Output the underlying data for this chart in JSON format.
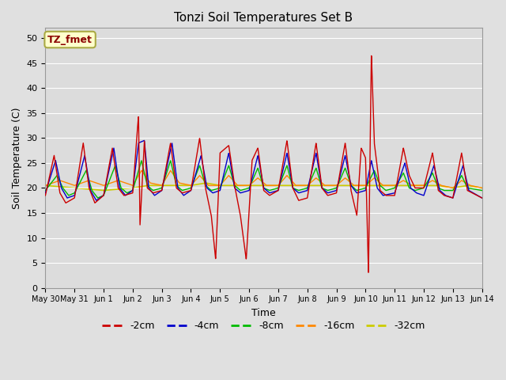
{
  "title": "Tonzi Soil Temperatures Set B",
  "xlabel": "Time",
  "ylabel": "Soil Temperature (C)",
  "ylim": [
    0,
    52
  ],
  "xlim": [
    0,
    15
  ],
  "fig_bg": "#e0e0e0",
  "plot_bg": "#dcdcdc",
  "legend_label": "TZ_fmet",
  "legend_bg": "#ffffcc",
  "legend_border": "#aaaa44",
  "series_colors": {
    "r2": "#cc0000",
    "r4": "#0000cc",
    "r8": "#00bb00",
    "r16": "#ff8800",
    "r32": "#cccc00"
  },
  "xtick_labels": [
    "May 30",
    "May 31",
    "Jun 1",
    "Jun 2",
    "Jun 3",
    "Jun 4",
    "Jun 5",
    "Jun 6",
    "Jun 7",
    "Jun 8",
    "Jun 9",
    "Jun 10",
    "Jun 11",
    "Jun 12",
    "Jun 13",
    "Jun 14"
  ],
  "xtick_positions": [
    0,
    1,
    2,
    3,
    4,
    5,
    6,
    7,
    8,
    9,
    10,
    11,
    12,
    13,
    14,
    15
  ],
  "yticks": [
    0,
    5,
    10,
    15,
    20,
    25,
    30,
    35,
    40,
    45,
    50
  ],
  "red_keypoints": [
    [
      0.0,
      18.5
    ],
    [
      0.3,
      26.5
    ],
    [
      0.5,
      19.0
    ],
    [
      0.7,
      17.0
    ],
    [
      1.0,
      18.0
    ],
    [
      1.3,
      29.0
    ],
    [
      1.5,
      20.0
    ],
    [
      1.7,
      17.0
    ],
    [
      2.0,
      18.5
    ],
    [
      2.3,
      28.0
    ],
    [
      2.5,
      20.0
    ],
    [
      2.7,
      18.5
    ],
    [
      3.0,
      19.0
    ],
    [
      3.15,
      31.0
    ],
    [
      3.2,
      34.5
    ],
    [
      3.25,
      12.5
    ],
    [
      3.4,
      29.5
    ],
    [
      3.5,
      20.0
    ],
    [
      3.7,
      19.0
    ],
    [
      4.0,
      19.5
    ],
    [
      4.3,
      29.0
    ],
    [
      4.5,
      20.0
    ],
    [
      4.7,
      19.0
    ],
    [
      5.0,
      19.5
    ],
    [
      5.3,
      30.0
    ],
    [
      5.5,
      20.0
    ],
    [
      5.7,
      14.5
    ],
    [
      5.85,
      5.7
    ],
    [
      6.0,
      27.0
    ],
    [
      6.3,
      28.5
    ],
    [
      6.5,
      20.5
    ],
    [
      6.7,
      14.5
    ],
    [
      6.9,
      5.7
    ],
    [
      7.1,
      25.5
    ],
    [
      7.3,
      28.0
    ],
    [
      7.5,
      19.5
    ],
    [
      7.7,
      18.5
    ],
    [
      8.0,
      19.5
    ],
    [
      8.3,
      29.5
    ],
    [
      8.5,
      20.0
    ],
    [
      8.7,
      17.5
    ],
    [
      9.0,
      18.0
    ],
    [
      9.3,
      29.0
    ],
    [
      9.5,
      20.0
    ],
    [
      9.7,
      18.5
    ],
    [
      10.0,
      19.0
    ],
    [
      10.3,
      29.0
    ],
    [
      10.5,
      19.5
    ],
    [
      10.7,
      14.5
    ],
    [
      10.85,
      28.0
    ],
    [
      11.0,
      26.0
    ],
    [
      11.1,
      2.8
    ],
    [
      11.2,
      47.0
    ],
    [
      11.3,
      29.0
    ],
    [
      11.5,
      19.5
    ],
    [
      11.7,
      18.5
    ],
    [
      12.0,
      18.5
    ],
    [
      12.3,
      28.0
    ],
    [
      12.5,
      22.5
    ],
    [
      12.7,
      20.0
    ],
    [
      13.0,
      20.0
    ],
    [
      13.3,
      27.0
    ],
    [
      13.5,
      19.5
    ],
    [
      13.7,
      18.5
    ],
    [
      14.0,
      18.0
    ],
    [
      14.3,
      27.0
    ],
    [
      14.5,
      19.5
    ],
    [
      15.0,
      18.0
    ]
  ],
  "blue_keypoints": [
    [
      0.0,
      19.0
    ],
    [
      0.35,
      25.5
    ],
    [
      0.55,
      20.0
    ],
    [
      0.75,
      18.0
    ],
    [
      1.0,
      18.5
    ],
    [
      1.35,
      26.5
    ],
    [
      1.55,
      19.5
    ],
    [
      1.75,
      17.5
    ],
    [
      2.0,
      18.5
    ],
    [
      2.35,
      28.0
    ],
    [
      2.55,
      20.0
    ],
    [
      2.75,
      18.5
    ],
    [
      3.0,
      19.5
    ],
    [
      3.2,
      29.0
    ],
    [
      3.4,
      29.5
    ],
    [
      3.55,
      20.0
    ],
    [
      3.75,
      18.5
    ],
    [
      4.0,
      19.5
    ],
    [
      4.35,
      29.0
    ],
    [
      4.55,
      20.0
    ],
    [
      4.75,
      18.5
    ],
    [
      5.0,
      19.5
    ],
    [
      5.35,
      26.5
    ],
    [
      5.55,
      20.0
    ],
    [
      5.75,
      19.0
    ],
    [
      6.0,
      19.5
    ],
    [
      6.3,
      27.0
    ],
    [
      6.5,
      20.0
    ],
    [
      6.7,
      19.0
    ],
    [
      7.0,
      19.5
    ],
    [
      7.3,
      26.5
    ],
    [
      7.5,
      20.0
    ],
    [
      7.7,
      19.0
    ],
    [
      8.0,
      19.5
    ],
    [
      8.3,
      27.0
    ],
    [
      8.5,
      20.0
    ],
    [
      8.7,
      19.0
    ],
    [
      9.0,
      19.5
    ],
    [
      9.3,
      27.0
    ],
    [
      9.5,
      20.0
    ],
    [
      9.7,
      19.0
    ],
    [
      10.0,
      19.5
    ],
    [
      10.3,
      26.5
    ],
    [
      10.5,
      20.5
    ],
    [
      10.7,
      19.0
    ],
    [
      11.0,
      19.5
    ],
    [
      11.2,
      25.5
    ],
    [
      11.4,
      20.0
    ],
    [
      11.6,
      18.5
    ],
    [
      12.0,
      19.0
    ],
    [
      12.35,
      25.0
    ],
    [
      12.55,
      20.0
    ],
    [
      12.75,
      19.0
    ],
    [
      13.0,
      18.5
    ],
    [
      13.35,
      24.5
    ],
    [
      13.55,
      19.5
    ],
    [
      13.75,
      18.5
    ],
    [
      14.0,
      18.0
    ],
    [
      14.35,
      24.5
    ],
    [
      14.55,
      19.5
    ],
    [
      15.0,
      18.0
    ]
  ],
  "green_keypoints": [
    [
      0.0,
      19.5
    ],
    [
      0.4,
      22.5
    ],
    [
      0.6,
      20.0
    ],
    [
      0.8,
      18.5
    ],
    [
      1.0,
      19.0
    ],
    [
      1.4,
      23.5
    ],
    [
      1.6,
      19.5
    ],
    [
      1.8,
      18.0
    ],
    [
      2.0,
      18.5
    ],
    [
      2.4,
      24.5
    ],
    [
      2.6,
      20.0
    ],
    [
      2.8,
      19.0
    ],
    [
      3.0,
      19.5
    ],
    [
      3.3,
      25.5
    ],
    [
      3.5,
      20.5
    ],
    [
      3.7,
      19.5
    ],
    [
      4.0,
      20.0
    ],
    [
      4.3,
      25.5
    ],
    [
      4.5,
      20.5
    ],
    [
      4.7,
      19.5
    ],
    [
      5.0,
      20.0
    ],
    [
      5.3,
      24.5
    ],
    [
      5.5,
      20.5
    ],
    [
      5.7,
      19.5
    ],
    [
      6.0,
      20.0
    ],
    [
      6.3,
      24.5
    ],
    [
      6.5,
      20.5
    ],
    [
      6.7,
      19.5
    ],
    [
      7.0,
      20.0
    ],
    [
      7.3,
      24.0
    ],
    [
      7.5,
      20.0
    ],
    [
      7.7,
      19.5
    ],
    [
      8.0,
      20.0
    ],
    [
      8.3,
      24.5
    ],
    [
      8.5,
      20.0
    ],
    [
      8.7,
      19.5
    ],
    [
      9.0,
      20.0
    ],
    [
      9.3,
      24.0
    ],
    [
      9.5,
      20.0
    ],
    [
      9.7,
      19.5
    ],
    [
      10.0,
      20.0
    ],
    [
      10.3,
      24.0
    ],
    [
      10.5,
      20.5
    ],
    [
      10.7,
      19.5
    ],
    [
      11.0,
      20.0
    ],
    [
      11.3,
      23.5
    ],
    [
      11.5,
      20.5
    ],
    [
      11.7,
      19.5
    ],
    [
      12.0,
      20.0
    ],
    [
      12.3,
      23.0
    ],
    [
      12.5,
      20.0
    ],
    [
      12.7,
      19.5
    ],
    [
      13.0,
      20.0
    ],
    [
      13.3,
      23.0
    ],
    [
      13.5,
      20.0
    ],
    [
      13.7,
      19.5
    ],
    [
      14.0,
      19.5
    ],
    [
      14.3,
      22.5
    ],
    [
      14.5,
      20.0
    ],
    [
      15.0,
      19.5
    ]
  ],
  "orange_keypoints": [
    [
      0.0,
      20.5
    ],
    [
      0.5,
      21.5
    ],
    [
      1.0,
      20.5
    ],
    [
      1.5,
      21.5
    ],
    [
      2.0,
      20.5
    ],
    [
      2.5,
      21.5
    ],
    [
      3.0,
      20.5
    ],
    [
      3.3,
      23.5
    ],
    [
      3.6,
      21.0
    ],
    [
      4.0,
      20.5
    ],
    [
      4.3,
      23.5
    ],
    [
      4.6,
      21.0
    ],
    [
      5.0,
      20.5
    ],
    [
      5.3,
      22.5
    ],
    [
      5.6,
      20.5
    ],
    [
      6.0,
      20.5
    ],
    [
      6.3,
      22.5
    ],
    [
      6.6,
      20.5
    ],
    [
      7.0,
      20.5
    ],
    [
      7.3,
      22.0
    ],
    [
      7.6,
      20.5
    ],
    [
      8.0,
      20.5
    ],
    [
      8.3,
      22.5
    ],
    [
      8.6,
      20.5
    ],
    [
      9.0,
      20.5
    ],
    [
      9.3,
      22.0
    ],
    [
      9.6,
      20.5
    ],
    [
      10.0,
      20.5
    ],
    [
      10.3,
      22.0
    ],
    [
      10.6,
      20.5
    ],
    [
      11.0,
      20.5
    ],
    [
      11.3,
      22.0
    ],
    [
      11.6,
      20.5
    ],
    [
      12.0,
      20.5
    ],
    [
      12.3,
      21.5
    ],
    [
      12.6,
      20.5
    ],
    [
      13.0,
      20.5
    ],
    [
      13.3,
      21.5
    ],
    [
      13.6,
      20.5
    ],
    [
      14.0,
      20.0
    ],
    [
      14.3,
      21.5
    ],
    [
      14.6,
      20.5
    ],
    [
      15.0,
      20.0
    ]
  ],
  "yellow_keypoints": [
    [
      0.0,
      20.5
    ],
    [
      1.0,
      20.0
    ],
    [
      2.0,
      19.5
    ],
    [
      3.0,
      20.0
    ],
    [
      3.5,
      20.5
    ],
    [
      4.0,
      20.5
    ],
    [
      4.5,
      20.5
    ],
    [
      5.0,
      20.5
    ],
    [
      5.5,
      21.0
    ],
    [
      6.0,
      20.5
    ],
    [
      6.5,
      20.5
    ],
    [
      7.0,
      20.5
    ],
    [
      7.5,
      20.5
    ],
    [
      8.0,
      20.5
    ],
    [
      8.5,
      20.5
    ],
    [
      9.0,
      20.5
    ],
    [
      9.5,
      20.5
    ],
    [
      10.0,
      20.5
    ],
    [
      10.5,
      20.5
    ],
    [
      11.0,
      20.5
    ],
    [
      11.5,
      20.5
    ],
    [
      12.0,
      20.5
    ],
    [
      12.5,
      20.5
    ],
    [
      13.0,
      20.5
    ],
    [
      13.5,
      20.5
    ],
    [
      14.0,
      20.0
    ],
    [
      14.5,
      20.5
    ],
    [
      15.0,
      20.0
    ]
  ]
}
